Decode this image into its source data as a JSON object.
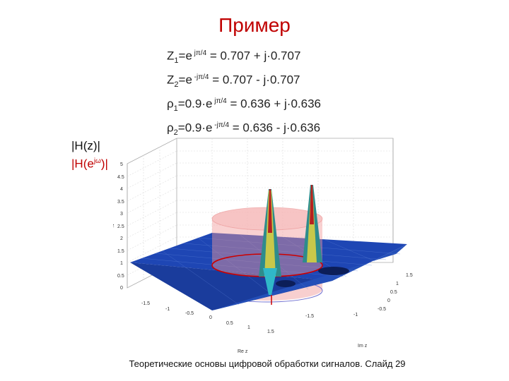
{
  "slide": {
    "title": "Пример",
    "footer": "Теоретические основы цифровой обработки сигналов. Слайд 29"
  },
  "formulas": [
    {
      "lhs": "Z",
      "sub": "1",
      "mid": "=e",
      "sup": " jπ/4",
      "rhs": " = 0.707 + j·0.707"
    },
    {
      "lhs": "Z",
      "sub": "2",
      "mid": "=e",
      "sup": " -jπ/4",
      "rhs": " = 0.707 - j·0.707"
    },
    {
      "lhs": "ρ",
      "sub": "1",
      "mid": "=0.9·e",
      "sup": " jπ/4",
      "rhs": " = 0.636 + j·0.636"
    },
    {
      "lhs": "ρ",
      "sub": "2",
      "mid": "=0.9·e",
      "sup": " -jπ/4",
      "rhs": " = 0.636 - j·0.636"
    }
  ],
  "legend": {
    "line1": "|H(z)|",
    "line2_pre": "|H(e",
    "line2_sup": "jω",
    "line2_post": ")|"
  },
  "plot": {
    "z_ticks": [
      "5",
      "4.5",
      "4",
      "3.5",
      "3",
      "2.5",
      "2",
      "1.5",
      "1",
      "0.5",
      "0"
    ],
    "re_ticks": [
      "-1.5",
      "-1",
      "-0.5",
      "0",
      "0.5",
      "1",
      "1.5"
    ],
    "im_ticks": [
      "-1.5",
      "-1",
      "-0.5",
      "0",
      "0.5",
      "1",
      "1.5"
    ],
    "xlabel": "Re z",
    "ylabel": "Im z",
    "zlabel": "z",
    "colors": {
      "surface": "#1e46b4",
      "cylinder": "#f29a9a",
      "circle": "#cc0000",
      "peak": "#b52020"
    }
  }
}
